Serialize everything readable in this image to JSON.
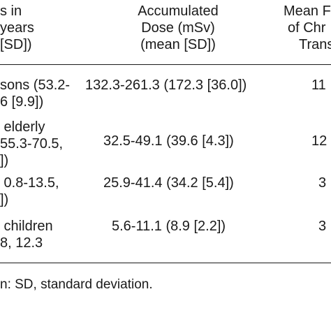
{
  "table": {
    "headers": {
      "col1": [
        "s in",
        "years",
        "[SD])"
      ],
      "col2": [
        "Accumulated",
        "Dose (mSv)",
        "(mean [SD])"
      ],
      "col3": [
        "Mean F",
        "of Chr",
        "Trans"
      ]
    },
    "rows": [
      {
        "col1": [
          "sons (53.2-",
          "6 [9.9])"
        ],
        "col2": "132.3-261.3 (172.3 [36.0])",
        "col3": "11"
      },
      {
        "col1": [
          " elderly",
          "55.3-70.5,",
          "])"
        ],
        "col2": "32.5-49.1 (39.6 [4.3])",
        "col3": "12"
      },
      {
        "col1": " 0.8-13.5,",
        "col1b": "])",
        "col2": "25.9-41.4 (34.2 [5.4])",
        "col3": "3"
      },
      {
        "col1": [
          " children",
          "8, 12.3"
        ],
        "col2": "5.6-11.1 (8.9 [2.2])",
        "col3": "3"
      }
    ],
    "footnote": "n: SD, standard deviation."
  }
}
